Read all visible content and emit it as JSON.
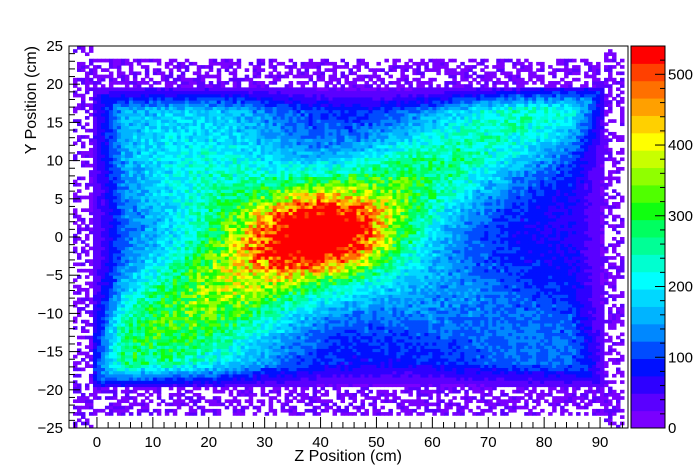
{
  "chart_data": {
    "type": "heatmap",
    "title": "",
    "xlabel": "Z Position (cm)",
    "ylabel": "Y Position (cm)",
    "xlim": [
      -5,
      95
    ],
    "ylim": [
      -25,
      25
    ],
    "x_ticks": [
      0,
      10,
      20,
      30,
      40,
      50,
      60,
      70,
      80,
      90
    ],
    "y_ticks": [
      -25,
      -20,
      -15,
      -10,
      -5,
      0,
      5,
      10,
      15,
      20,
      25
    ],
    "z_range": [
      0,
      540
    ],
    "z_ticks": [
      0,
      100,
      200,
      300,
      400,
      500
    ],
    "palette": [
      "#7a00ff",
      "#5a00ff",
      "#2e00ff",
      "#0010ff",
      "#004cff",
      "#0088ff",
      "#00b4ff",
      "#00d8ff",
      "#00ffff",
      "#00ffd0",
      "#00ff96",
      "#00ff60",
      "#10ff10",
      "#50ff00",
      "#90ff00",
      "#c8ff00",
      "#ffff00",
      "#ffd000",
      "#ffa000",
      "#ff7000",
      "#ff4000",
      "#ff0000"
    ],
    "distribution": {
      "body_x_range": [
        -1,
        91
      ],
      "body_y_range": [
        -19.5,
        19.5
      ],
      "peak_xy": [
        40,
        0.5
      ],
      "peak_value": 540,
      "diagonal_band": "lower-left to upper-right, counts 250-450",
      "secondary_band": "upper-left to lower-right, counts 200-300",
      "edges": "counts 0-120 at body border, sparse noise beyond |Y|>19.5"
    }
  }
}
